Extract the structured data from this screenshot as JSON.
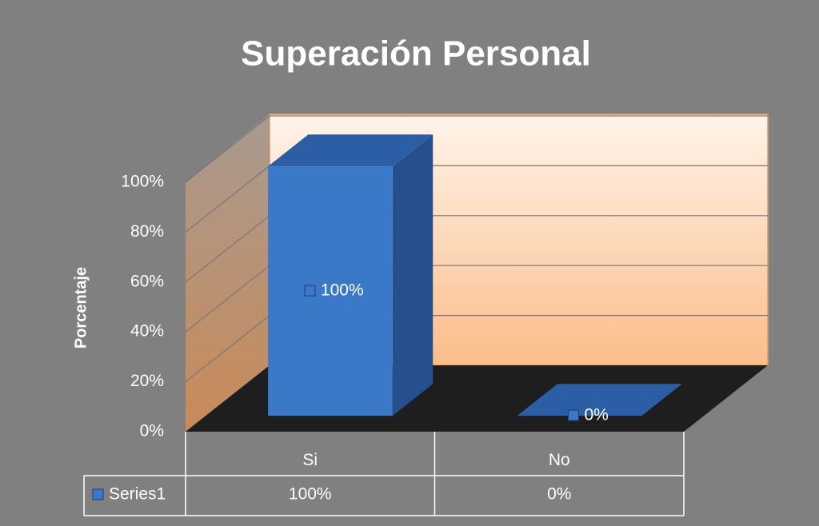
{
  "chart_data": {
    "type": "bar3d",
    "title": "Superación Personal",
    "y_label": "Porcentaje",
    "categories": [
      "Si",
      "No"
    ],
    "series": [
      {
        "name": "Series1",
        "color": "#3a78c8",
        "values": [
          100,
          0
        ],
        "value_labels": [
          "100%",
          "0%"
        ]
      }
    ],
    "ylim": [
      0,
      100
    ],
    "yticks": [
      {
        "value": 0,
        "label": "0%"
      },
      {
        "value": 20,
        "label": "20%"
      },
      {
        "value": 40,
        "label": "40%"
      },
      {
        "value": 60,
        "label": "60%"
      },
      {
        "value": 80,
        "label": "80%"
      },
      {
        "value": 100,
        "label": "100%"
      }
    ],
    "grid": true,
    "data_table": true
  }
}
